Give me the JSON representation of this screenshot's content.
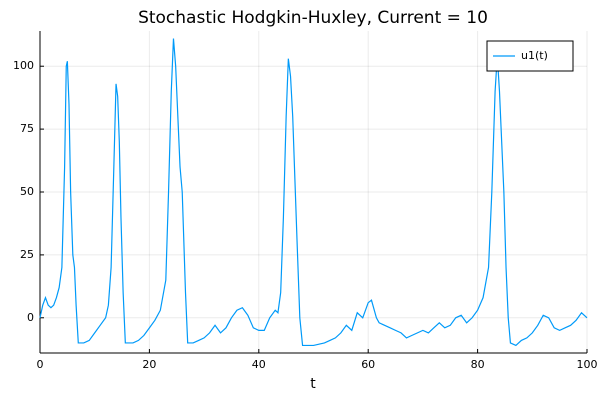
{
  "chart_data": {
    "type": "line",
    "title": "Stochastic Hodgkin-Huxley, Current = 10",
    "x_label": "t",
    "xlim": [
      0,
      100
    ],
    "ylim": [
      -14,
      114
    ],
    "xticks": [
      0,
      20,
      40,
      60,
      80,
      100
    ],
    "yticks": [
      0,
      25,
      50,
      75,
      100
    ],
    "grid": true,
    "legend": "top-right",
    "series": [
      {
        "name": "u1(t)",
        "color": "#009af9",
        "x": [
          0,
          0.5,
          1,
          1.5,
          2,
          2.5,
          3,
          3.5,
          4,
          4.5,
          4.8,
          5,
          5.3,
          5.6,
          6,
          6.3,
          6.6,
          7,
          8,
          9,
          10,
          11,
          12,
          12.5,
          13,
          13.5,
          13.9,
          14.2,
          14.5,
          14.8,
          15.2,
          15.6,
          17,
          18,
          19,
          20,
          21,
          22,
          23,
          23.5,
          24,
          24.4,
          24.8,
          25.2,
          25.6,
          26,
          26.3,
          26.6,
          27,
          28,
          29,
          30,
          31,
          32,
          33,
          34,
          35,
          36,
          37,
          38,
          39,
          40,
          41,
          42,
          43,
          43.5,
          44,
          44.5,
          45,
          45.4,
          45.8,
          46.2,
          46.6,
          47,
          47.5,
          48,
          50,
          52,
          53,
          54,
          55,
          56,
          57,
          58,
          59,
          60,
          60.6,
          61.5,
          62,
          63,
          64,
          65,
          66,
          67,
          68,
          69,
          70,
          71,
          72,
          73,
          74,
          75,
          76,
          77,
          78,
          79,
          80,
          81,
          82,
          82.6,
          83.2,
          83.6,
          84,
          84.4,
          84.8,
          85.2,
          85.6,
          86,
          87,
          88,
          89,
          90,
          91,
          92,
          93,
          94,
          95,
          96,
          97,
          98,
          99,
          100
        ],
        "values": [
          0,
          5,
          8,
          5,
          4,
          5,
          8,
          12,
          20,
          60,
          100,
          102,
          85,
          50,
          25,
          20,
          5,
          -10,
          -10,
          -9,
          -6,
          -3,
          0,
          5,
          20,
          60,
          93,
          88,
          70,
          40,
          10,
          -10,
          -10,
          -9,
          -7,
          -4,
          -1,
          3,
          15,
          50,
          90,
          111,
          100,
          80,
          60,
          50,
          30,
          10,
          -10,
          -10,
          -9,
          -8,
          -6,
          -3,
          -6,
          -4,
          0,
          3,
          4,
          1,
          -4,
          -5,
          -5,
          0,
          3,
          2,
          10,
          40,
          80,
          103,
          96,
          80,
          55,
          30,
          0,
          -11,
          -11,
          -10,
          -9,
          -8,
          -6,
          -3,
          -5,
          2,
          0,
          6,
          7,
          0,
          -2,
          -3,
          -4,
          -5,
          -6,
          -8,
          -7,
          -6,
          -5,
          -6,
          -4,
          -2,
          -4,
          -3,
          0,
          1,
          -2,
          0,
          3,
          8,
          20,
          50,
          90,
          104,
          90,
          70,
          50,
          20,
          0,
          -10,
          -11,
          -9,
          -8,
          -6,
          -3,
          1,
          0,
          -4,
          -5,
          -4,
          -3,
          -1,
          2,
          0
        ]
      }
    ]
  }
}
